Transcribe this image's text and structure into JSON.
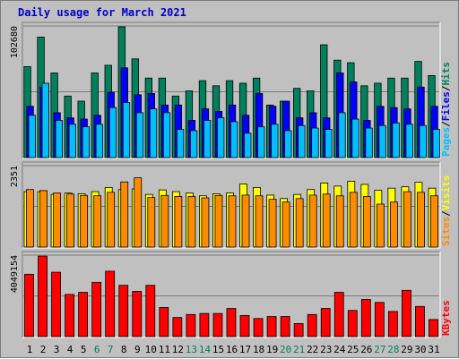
{
  "chart_data": {
    "type": "bar",
    "title": "Daily usage for March 2021",
    "x": [
      "1",
      "2",
      "3",
      "4",
      "5",
      "6",
      "7",
      "8",
      "9",
      "10",
      "11",
      "12",
      "13",
      "14",
      "15",
      "16",
      "17",
      "18",
      "19",
      "20",
      "21",
      "22",
      "23",
      "24",
      "25",
      "26",
      "27",
      "28",
      "29",
      "30",
      "31"
    ],
    "weekend_days": [
      "6",
      "7",
      "13",
      "14",
      "20",
      "21",
      "27",
      "28"
    ],
    "colors": {
      "hits": "#00805c",
      "files": "#0000ff",
      "pages": "#00bfff",
      "visits": "#ffff00",
      "sites": "#ff8c00",
      "kbytes": "#ff0000",
      "weekday_tick": "#000000",
      "weekend_tick": "#00805c"
    },
    "panels": [
      {
        "name": "hits-files-pages",
        "ymax": 102680,
        "ytick_label": "102680",
        "legend": [
          "Pages",
          "/",
          "Files",
          "/",
          "Hits"
        ],
        "series": [
          {
            "name": "Hits",
            "values": [
              71000,
              94000,
              66000,
              48000,
              44000,
              66000,
              72000,
              102000,
              77000,
              62000,
              62000,
              48000,
              52000,
              60000,
              56000,
              60000,
              58000,
              62000,
              41000,
              44000,
              54000,
              52000,
              88000,
              76000,
              74000,
              56000,
              58000,
              62000,
              62000,
              75000,
              64000
            ]
          },
          {
            "name": "Files",
            "values": [
              40000,
              55000,
              35000,
              31000,
              30000,
              33000,
              51000,
              70000,
              49000,
              50000,
              41000,
              41000,
              29000,
              38000,
              36000,
              41000,
              33000,
              50000,
              40000,
              44000,
              31000,
              35000,
              31000,
              66000,
              59000,
              29000,
              40000,
              39000,
              38000,
              55000,
              40000
            ]
          },
          {
            "name": "Pages",
            "values": [
              33000,
              58000,
              29000,
              26000,
              24000,
              26000,
              39000,
              43000,
              35000,
              38000,
              35000,
              22000,
              21000,
              29000,
              31000,
              28000,
              19000,
              24000,
              26000,
              21000,
              25000,
              23000,
              22000,
              35000,
              30000,
              23000,
              25000,
              27000,
              26000,
              25000,
              22000
            ]
          }
        ]
      },
      {
        "name": "visits-sites",
        "ymax": 2351,
        "ytick_label": "2351",
        "legend": [
          "Sites",
          "/",
          "Visits"
        ],
        "series": [
          {
            "name": "Visits",
            "values": [
              1600,
              1600,
              1520,
              1560,
              1540,
              1600,
              1720,
              1660,
              1680,
              1520,
              1650,
              1600,
              1560,
              1480,
              1540,
              1560,
              1820,
              1720,
              1500,
              1400,
              1520,
              1660,
              1850,
              1760,
              1900,
              1810,
              1640,
              1700,
              1740,
              1870,
              1700
            ]
          },
          {
            "name": "Sites",
            "values": [
              1660,
              1630,
              1560,
              1530,
              1490,
              1480,
              1580,
              1880,
              2000,
              1430,
              1490,
              1460,
              1460,
              1420,
              1490,
              1480,
              1500,
              1480,
              1380,
              1300,
              1400,
              1500,
              1530,
              1480,
              1580,
              1460,
              1240,
              1300,
              1600,
              1580,
              1480
            ]
          }
        ]
      },
      {
        "name": "kbytes",
        "ymax": 4049154,
        "ytick_label": "4049154",
        "legend": [
          "KBytes"
        ],
        "series": [
          {
            "name": "KBytes",
            "values": [
              3100000,
              4000000,
              3200000,
              2100000,
              2200000,
              2700000,
              3250000,
              2550000,
              2250000,
              2550000,
              1450000,
              950000,
              1100000,
              1150000,
              1150000,
              1400000,
              1050000,
              900000,
              1000000,
              1000000,
              650000,
              1100000,
              1400000,
              2200000,
              1300000,
              1850000,
              1700000,
              1250000,
              2300000,
              1500000,
              850000
            ]
          }
        ]
      }
    ]
  }
}
